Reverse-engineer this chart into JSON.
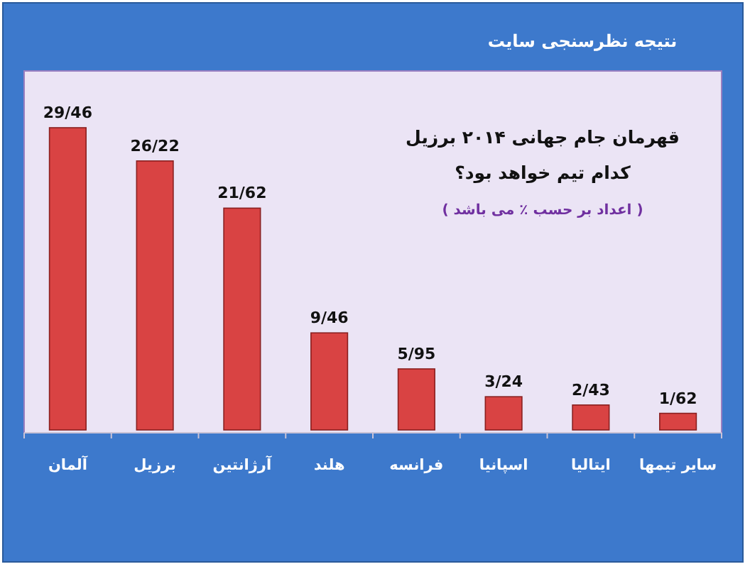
{
  "chart_data": {
    "type": "bar",
    "title": "نتیجه نظرسنجی سایت",
    "categories": [
      "آلمان",
      "برزیل",
      "آرژانتین",
      "هلند",
      "فرانسه",
      "اسپانیا",
      "ایتالیا",
      "سایر تیمها"
    ],
    "values": [
      29.46,
      26.22,
      21.62,
      9.46,
      5.95,
      3.24,
      2.43,
      1.62
    ],
    "value_labels": [
      "29/46",
      "26/22",
      "21/62",
      "9/46",
      "5/95",
      "3/24",
      "2/43",
      "1/62"
    ],
    "color": "#d94343",
    "annotations": [
      "قهرمان جام جهانی ۲۰۱۴ برزیل",
      "کدام تیم خواهد بود؟",
      "( اعداد بر حسب ٪ می باشد )"
    ]
  }
}
